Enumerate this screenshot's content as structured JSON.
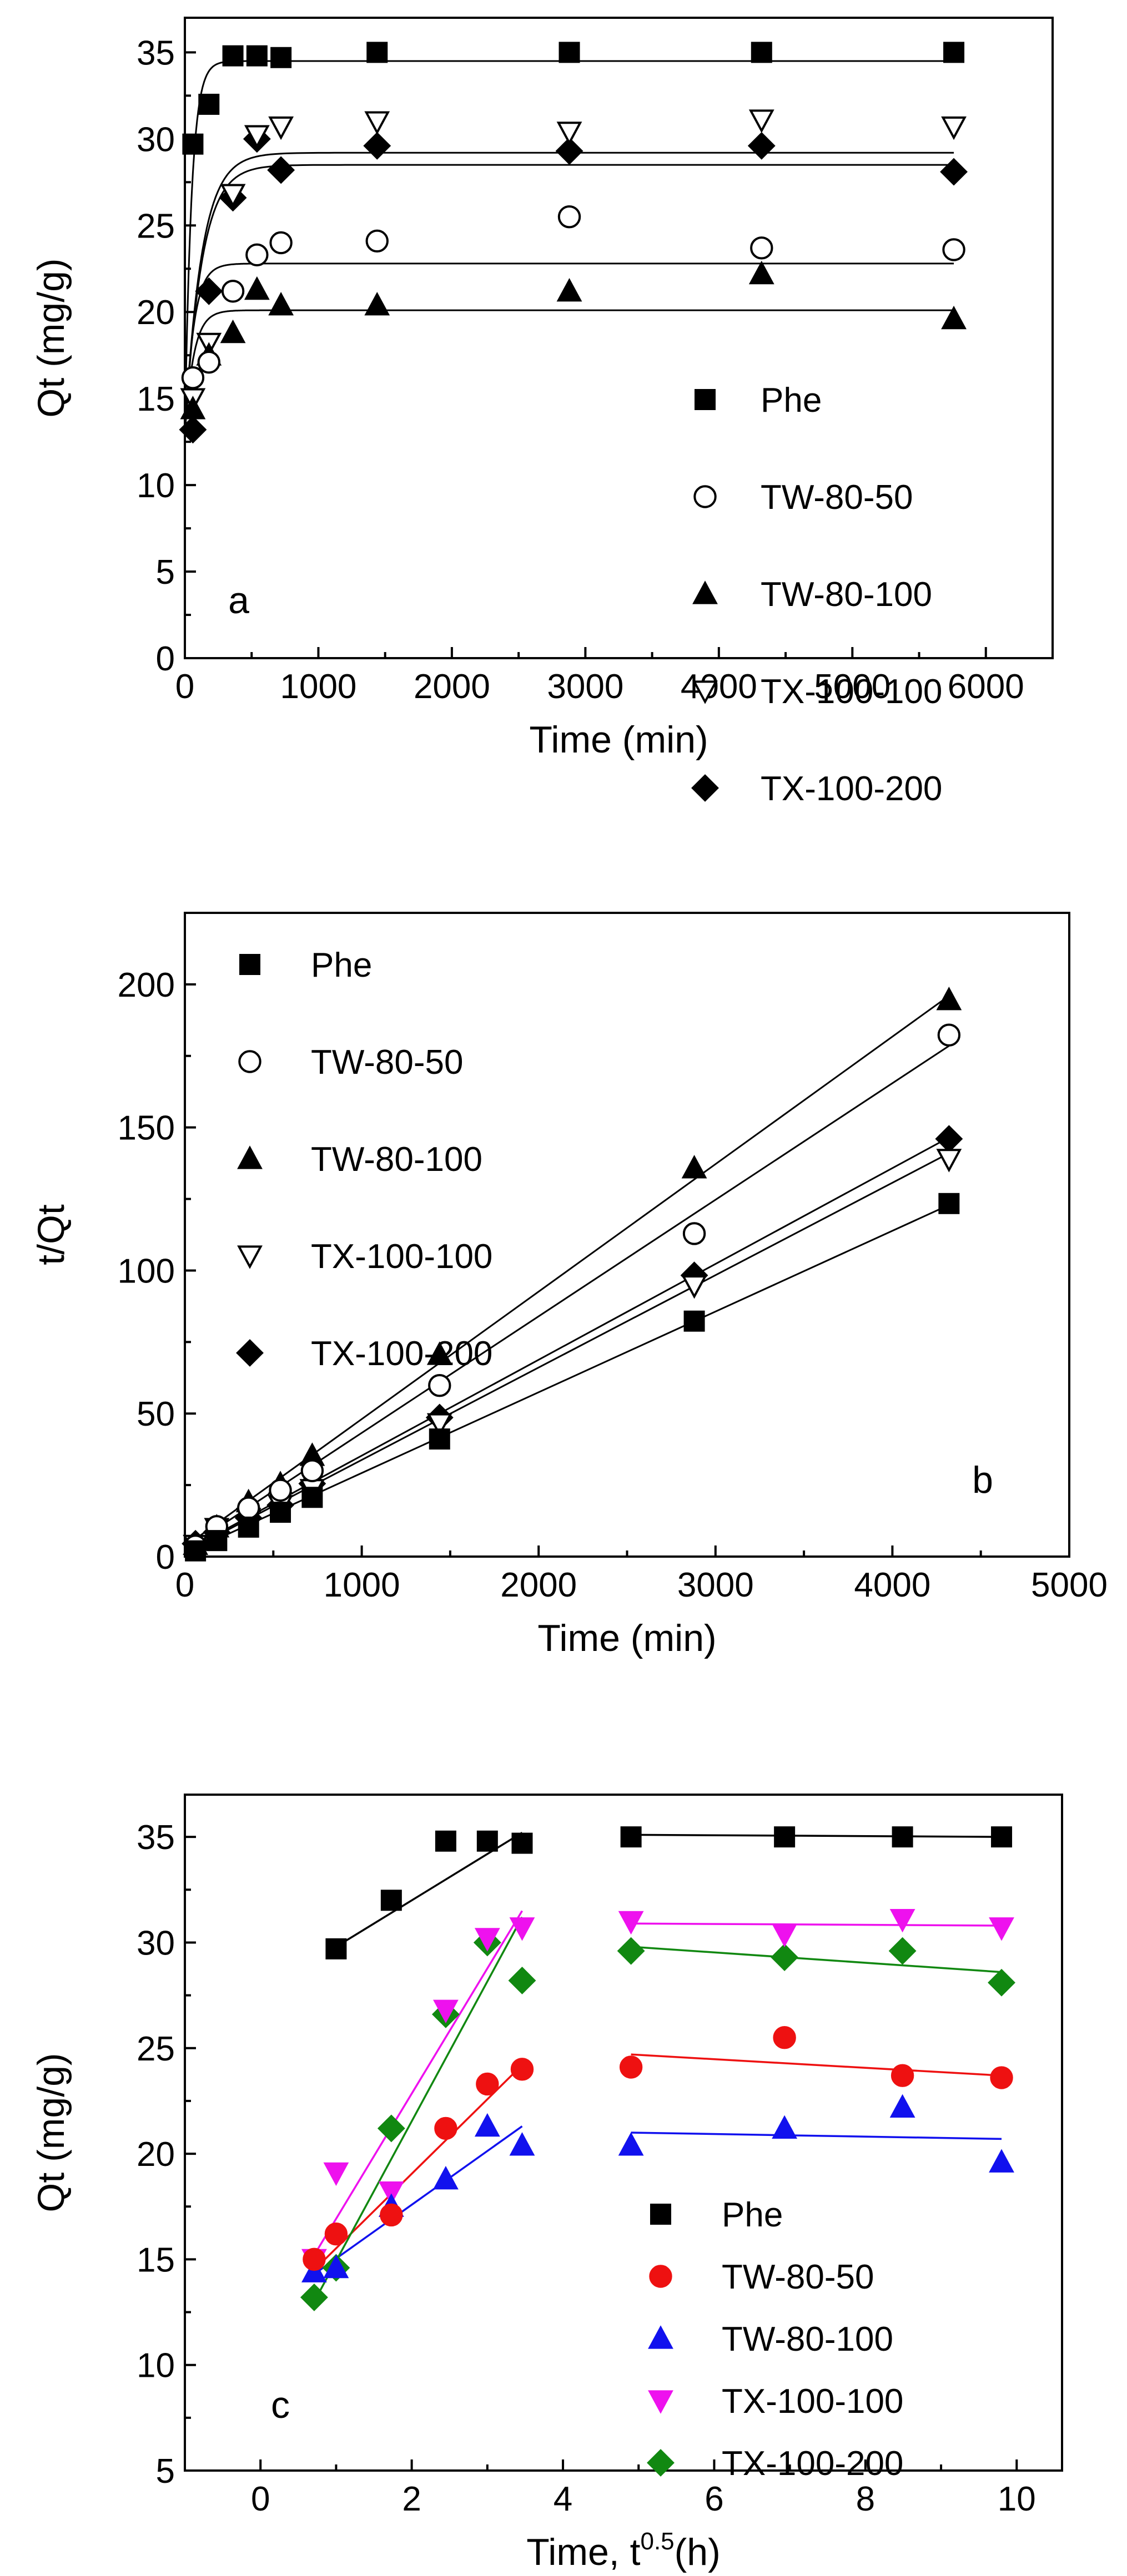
{
  "chart_data": [
    {
      "type": "scatter",
      "panel_label": "a",
      "xlabel": "Time (min)",
      "ylabel": "Qt (mg/g)",
      "xlim": [
        0,
        6500
      ],
      "ylim": [
        0,
        37
      ],
      "xticks": [
        0,
        1000,
        2000,
        3000,
        4000,
        5000,
        6000
      ],
      "yticks": [
        0,
        5,
        10,
        15,
        20,
        25,
        30,
        35
      ],
      "legend_position": "bottom-right",
      "series": [
        {
          "name": "Phe",
          "marker": "square",
          "color": "#000000",
          "x": [
            60,
            180,
            360,
            540,
            720,
            1440,
            2880,
            4320,
            5760
          ],
          "y": [
            29.7,
            32.0,
            34.8,
            34.8,
            34.7,
            35.0,
            35.0,
            35.0,
            35.0
          ],
          "fit": {
            "qe": 34.5,
            "k": 0.02,
            "q0": 13
          }
        },
        {
          "name": "TW-80-50",
          "marker": "circle-open",
          "color": "#000000",
          "x": [
            60,
            180,
            360,
            540,
            720,
            1440,
            2880,
            4320,
            5760
          ],
          "y": [
            16.2,
            17.1,
            21.2,
            23.3,
            24.0,
            24.1,
            25.5,
            23.7,
            23.6
          ],
          "fit": {
            "qe": 22.8,
            "k": 0.015,
            "q0": 13
          }
        },
        {
          "name": "TW-80-100",
          "marker": "triangle-up",
          "color": "#000000",
          "x": [
            60,
            180,
            360,
            540,
            720,
            1440,
            2880,
            4320,
            5760
          ],
          "y": [
            14.4,
            17.5,
            18.8,
            21.3,
            20.4,
            20.4,
            21.2,
            22.2,
            19.6
          ],
          "fit": {
            "qe": 20.1,
            "k": 0.015,
            "q0": 13
          }
        },
        {
          "name": "TX-100-100",
          "marker": "triangle-down-open",
          "color": "#000000",
          "x": [
            60,
            180,
            360,
            540,
            720,
            1440,
            2880,
            4320,
            5760
          ],
          "y": [
            15.0,
            18.2,
            26.8,
            30.2,
            30.7,
            31.0,
            30.4,
            31.1,
            30.7
          ],
          "fit": {
            "qe": 29.2,
            "k": 0.008,
            "q0": 13
          }
        },
        {
          "name": "TX-100-200",
          "marker": "diamond",
          "color": "#000000",
          "x": [
            60,
            180,
            360,
            540,
            720,
            1440,
            2880,
            4320,
            5760
          ],
          "y": [
            13.2,
            21.2,
            26.6,
            30.0,
            28.2,
            29.6,
            29.3,
            29.6,
            28.1
          ],
          "fit": {
            "qe": 28.5,
            "k": 0.008,
            "q0": 13
          }
        }
      ]
    },
    {
      "type": "scatter",
      "panel_label": "b",
      "xlabel": "Time (min)",
      "ylabel": "t/Qt",
      "xlim": [
        0,
        5000
      ],
      "ylim": [
        0,
        225
      ],
      "xticks": [
        0,
        1000,
        2000,
        3000,
        4000,
        5000
      ],
      "yticks": [
        0,
        50,
        100,
        150,
        200
      ],
      "legend_position": "top-left",
      "series": [
        {
          "name": "Phe",
          "marker": "square",
          "color": "#000000",
          "x": [
            60,
            180,
            360,
            540,
            720,
            1440,
            2880,
            4320
          ],
          "y": [
            2.0,
            5.6,
            10.3,
            15.5,
            20.7,
            41.1,
            82.3,
            123.4
          ],
          "fit": {
            "x": [
              0,
              4320
            ],
            "y": [
              1.0,
              122.9
            ]
          }
        },
        {
          "name": "TW-80-50",
          "marker": "circle-open",
          "color": "#000000",
          "x": [
            60,
            180,
            360,
            540,
            720,
            1440,
            2880,
            4320
          ],
          "y": [
            3.7,
            10.5,
            17.0,
            23.2,
            30.0,
            59.8,
            112.9,
            182.3
          ],
          "fit": {
            "x": [
              0,
              4320
            ],
            "y": [
              2.5,
              178.5
            ]
          }
        },
        {
          "name": "TW-80-100",
          "marker": "triangle-up",
          "color": "#000000",
          "x": [
            60,
            180,
            360,
            540,
            720,
            1440,
            2880,
            4320
          ],
          "y": [
            4.2,
            10.3,
            19.1,
            25.4,
            35.3,
            70.6,
            135.8,
            194.6
          ],
          "fit": {
            "x": [
              0,
              4320
            ],
            "y": [
              3.5,
              196.0
            ]
          }
        },
        {
          "name": "TX-100-100",
          "marker": "triangle-down-open",
          "color": "#000000",
          "x": [
            60,
            180,
            360,
            540,
            720,
            1440,
            2880,
            4320
          ],
          "y": [
            4.0,
            9.9,
            13.4,
            17.9,
            23.5,
            46.5,
            94.7,
            138.9
          ],
          "fit": {
            "x": [
              0,
              4320
            ],
            "y": [
              1.5,
              141.0
            ]
          }
        },
        {
          "name": "TX-100-200",
          "marker": "diamond",
          "color": "#000000",
          "x": [
            60,
            180,
            360,
            540,
            720,
            1440,
            2880,
            4320
          ],
          "y": [
            4.5,
            8.5,
            13.5,
            18.0,
            25.5,
            48.6,
            98.3,
            146.0
          ],
          "fit": {
            "x": [
              0,
              4320
            ],
            "y": [
              1.8,
              146.5
            ]
          }
        }
      ]
    },
    {
      "type": "scatter",
      "panel_label": "c",
      "xlabel_main": "Time, t",
      "xlabel_sup": "0.5",
      "xlabel_unit": "(h)",
      "ylabel": "Qt (mg/g)",
      "xlim": [
        -1,
        10.6
      ],
      "ylim": [
        5,
        37
      ],
      "xticks": [
        0,
        2,
        4,
        6,
        8,
        10
      ],
      "yticks": [
        5,
        10,
        15,
        20,
        25,
        30,
        35
      ],
      "legend_position": "bottom-right",
      "series": [
        {
          "name": "Phe",
          "marker": "square",
          "color": "#000000",
          "x": [
            1.0,
            1.73,
            2.45,
            3.0,
            3.46,
            4.9,
            6.93,
            8.49,
            9.8
          ],
          "y": [
            29.7,
            32.0,
            34.8,
            34.8,
            34.7,
            35.0,
            35.0,
            35.0,
            35.0
          ],
          "fits": [
            {
              "x": [
                1.0,
                3.46
              ],
              "y": [
                29.8,
                35.2
              ]
            },
            {
              "x": [
                4.9,
                9.8
              ],
              "y": [
                35.1,
                35.0
              ]
            }
          ]
        },
        {
          "name": "TW-80-50",
          "marker": "circle",
          "color": "#ee1111",
          "x": [
            0.71,
            1.0,
            1.73,
            2.45,
            3.0,
            3.46,
            4.9,
            6.93,
            8.49,
            9.8
          ],
          "y": [
            15.0,
            16.2,
            17.1,
            21.2,
            23.3,
            24.0,
            24.1,
            25.5,
            23.7,
            23.6
          ],
          "fits": [
            {
              "x": [
                0.71,
                3.46
              ],
              "y": [
                14.5,
                24.2
              ]
            },
            {
              "x": [
                4.9,
                9.8
              ],
              "y": [
                24.7,
                23.7
              ]
            }
          ]
        },
        {
          "name": "TW-80-100",
          "marker": "triangle-up",
          "color": "#1111ee",
          "x": [
            0.71,
            1.0,
            1.73,
            2.45,
            3.0,
            3.46,
            4.9,
            6.93,
            8.49,
            9.8
          ],
          "y": [
            14.4,
            14.6,
            17.5,
            18.8,
            21.3,
            20.4,
            20.4,
            21.2,
            22.2,
            19.6
          ],
          "fits": [
            {
              "x": [
                0.71,
                3.46
              ],
              "y": [
                14.3,
                21.3
              ]
            },
            {
              "x": [
                4.9,
                9.8
              ],
              "y": [
                21.0,
                20.7
              ]
            }
          ]
        },
        {
          "name": "TX-100-100",
          "marker": "triangle-down",
          "color": "#ee11ee",
          "x": [
            0.71,
            1.0,
            1.73,
            2.45,
            3.0,
            3.46,
            4.9,
            6.93,
            8.49,
            9.8
          ],
          "y": [
            15.0,
            19.1,
            18.2,
            26.8,
            30.2,
            30.7,
            31.0,
            30.4,
            31.1,
            30.7
          ],
          "fits": [
            {
              "x": [
                0.71,
                3.46
              ],
              "y": [
                15.2,
                31.5
              ]
            },
            {
              "x": [
                4.9,
                9.8
              ],
              "y": [
                30.9,
                30.8
              ]
            }
          ]
        },
        {
          "name": "TX-100-200",
          "marker": "diamond",
          "color": "#118811",
          "x": [
            0.71,
            1.0,
            1.73,
            2.45,
            3.0,
            3.46,
            4.9,
            6.93,
            8.49,
            9.8
          ],
          "y": [
            13.2,
            14.6,
            21.2,
            26.6,
            30.0,
            28.2,
            29.6,
            29.3,
            29.6,
            28.1
          ],
          "fits": [
            {
              "x": [
                0.71,
                3.46
              ],
              "y": [
                13.0,
                31.2
              ]
            },
            {
              "x": [
                4.9,
                9.8
              ],
              "y": [
                29.8,
                28.6
              ]
            }
          ]
        }
      ]
    }
  ]
}
